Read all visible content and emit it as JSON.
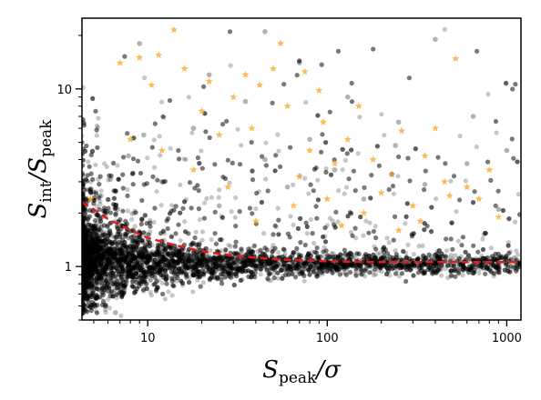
{
  "chart_data": {
    "type": "scatter",
    "title": "",
    "xlabel": "S_peak/σ",
    "ylabel": "S_int/S_peak",
    "xscale": "log",
    "yscale": "log",
    "xlim": [
      4.3,
      1200
    ],
    "ylim": [
      0.5,
      25
    ],
    "x_ticks": [
      {
        "value": 10,
        "label": "10"
      },
      {
        "value": 100,
        "label": "100"
      },
      {
        "value": 1000,
        "label": "1000"
      }
    ],
    "y_ticks": [
      {
        "value": 1,
        "label": "1"
      },
      {
        "value": 10,
        "label": "10"
      }
    ],
    "grid": false,
    "legend": null,
    "series": [
      {
        "marker": "circle",
        "color": "#000000",
        "opacity": 0.22,
        "description_of_distribution": "dense cloud concentrated near y≈1 at low S/N, spreading upward to y≈20 with scatter; densest for x<20",
        "points": [
          [
            5.2,
            0.95
          ],
          [
            5.5,
            1.1
          ],
          [
            6.0,
            0.9
          ],
          [
            6.3,
            1.05
          ],
          [
            7.0,
            1.2
          ],
          [
            7.5,
            0.85
          ],
          [
            8.0,
            1.3
          ],
          [
            9.0,
            1.0
          ],
          [
            10.0,
            1.15
          ],
          [
            12,
            0.95
          ],
          [
            15,
            1.1
          ],
          [
            20,
            1.05
          ],
          [
            25,
            1.2
          ],
          [
            30,
            0.98
          ],
          [
            40,
            1.1
          ],
          [
            50,
            1.02
          ],
          [
            70,
            1.12
          ],
          [
            100,
            1.05
          ],
          [
            150,
            1.08
          ],
          [
            200,
            1.1
          ],
          [
            300,
            1.04
          ],
          [
            500,
            1.1
          ],
          [
            800,
            1.06
          ],
          [
            1100,
            1.12
          ],
          [
            5.4,
            2.5
          ],
          [
            6.2,
            3.1
          ],
          [
            7.8,
            4.2
          ],
          [
            9.5,
            5.5
          ],
          [
            12,
            3.0
          ],
          [
            18,
            6.0
          ],
          [
            25,
            2.2
          ],
          [
            35,
            8.5
          ],
          [
            45,
            4.0
          ],
          [
            60,
            2.8
          ],
          [
            80,
            5.2
          ],
          [
            110,
            3.5
          ],
          [
            160,
            2.4
          ],
          [
            240,
            4.8
          ],
          [
            350,
            2.9
          ],
          [
            600,
            3.8
          ],
          [
            900,
            2.1
          ],
          [
            45,
            21.0
          ],
          [
            400,
            19.0
          ],
          [
            9.0,
            18.0
          ],
          [
            22,
            12.0
          ],
          [
            70,
            14.0
          ],
          [
            130,
            9.0
          ],
          [
            250,
            6.5
          ],
          [
            650,
            7.0
          ],
          [
            1000,
            4.5
          ],
          [
            5.8,
            0.6
          ],
          [
            6.6,
            0.55
          ],
          [
            7.2,
            0.7
          ],
          [
            8.5,
            0.75
          ],
          [
            11,
            0.8
          ],
          [
            14,
            0.85
          ],
          [
            5.1,
            1.7
          ],
          [
            5.6,
            1.9
          ],
          [
            6.8,
            2.1
          ],
          [
            8.2,
            1.6
          ]
        ]
      },
      {
        "marker": "star",
        "color": "#f5a623",
        "opacity": 0.75,
        "points": [
          [
            4.8,
            2.4
          ],
          [
            7.0,
            14.0
          ],
          [
            9.0,
            15.0
          ],
          [
            10.5,
            10.5
          ],
          [
            11.5,
            15.5
          ],
          [
            14,
            21.5
          ],
          [
            16,
            13.0
          ],
          [
            20,
            7.5
          ],
          [
            25,
            5.5
          ],
          [
            30,
            9.0
          ],
          [
            35,
            12.0
          ],
          [
            42,
            10.5
          ],
          [
            50,
            13.0
          ],
          [
            55,
            18.0
          ],
          [
            60,
            8.0
          ],
          [
            75,
            12.5
          ],
          [
            80,
            4.5
          ],
          [
            95,
            6.5
          ],
          [
            110,
            3.8
          ],
          [
            130,
            5.2
          ],
          [
            150,
            8.0
          ],
          [
            180,
            4.0
          ],
          [
            200,
            2.6
          ],
          [
            230,
            3.3
          ],
          [
            260,
            5.8
          ],
          [
            300,
            2.2
          ],
          [
            350,
            4.2
          ],
          [
            400,
            6.0
          ],
          [
            450,
            3.0
          ],
          [
            520,
            14.8
          ],
          [
            600,
            2.8
          ],
          [
            700,
            2.4
          ],
          [
            800,
            3.5
          ],
          [
            900,
            1.9
          ],
          [
            28,
            2.8
          ],
          [
            18,
            3.5
          ],
          [
            40,
            1.8
          ],
          [
            65,
            2.2
          ],
          [
            120,
            1.7
          ],
          [
            250,
            1.6
          ],
          [
            12,
            4.5
          ],
          [
            8,
            5.2
          ],
          [
            22,
            11.0
          ],
          [
            38,
            6.0
          ],
          [
            90,
            9.8
          ],
          [
            160,
            2.0
          ],
          [
            330,
            1.8
          ],
          [
            480,
            2.5
          ],
          [
            70,
            3.2
          ],
          [
            100,
            2.4
          ]
        ]
      },
      {
        "name": "",
        "type": "line",
        "style": "dashed",
        "color": "#e41a1c",
        "points": [
          [
            4.3,
            2.3
          ],
          [
            5,
            2.1
          ],
          [
            6,
            1.85
          ],
          [
            8,
            1.6
          ],
          [
            10,
            1.45
          ],
          [
            15,
            1.3
          ],
          [
            20,
            1.22
          ],
          [
            30,
            1.15
          ],
          [
            50,
            1.1
          ],
          [
            100,
            1.07
          ],
          [
            200,
            1.06
          ],
          [
            500,
            1.06
          ],
          [
            1000,
            1.06
          ],
          [
            1200,
            1.06
          ]
        ]
      }
    ]
  }
}
